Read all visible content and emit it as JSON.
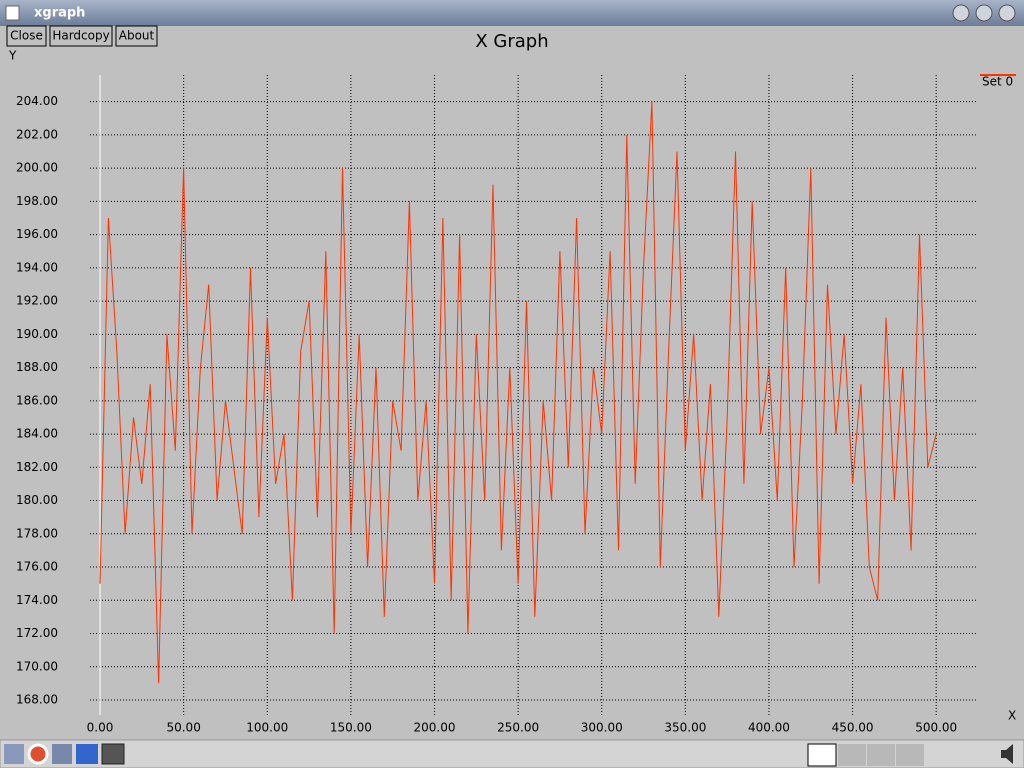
{
  "window": {
    "title": "xgraph"
  },
  "buttons": [
    "Close",
    "Hardcopy",
    "About"
  ],
  "chart_data": {
    "type": "line",
    "title": "X Graph",
    "x_label": "X",
    "y_label": "Y",
    "x": [
      0,
      5,
      10,
      15,
      20,
      25,
      30,
      35,
      40,
      45,
      50,
      55,
      60,
      65,
      70,
      75,
      80,
      85,
      90,
      95,
      100,
      105,
      110,
      115,
      120,
      125,
      130,
      135,
      140,
      145,
      150,
      155,
      160,
      165,
      170,
      175,
      180,
      185,
      190,
      195,
      200,
      205,
      210,
      215,
      220,
      225,
      230,
      235,
      240,
      245,
      250,
      255,
      260,
      265,
      270,
      275,
      280,
      285,
      290,
      295,
      300,
      305,
      310,
      315,
      320,
      325,
      330,
      335,
      340,
      345,
      350,
      355,
      360,
      365,
      370,
      375,
      380,
      385,
      390,
      395,
      400,
      405,
      410,
      415,
      420,
      425,
      430,
      435,
      440,
      445,
      450,
      455,
      460,
      465,
      470,
      475,
      480,
      485,
      490,
      495,
      500
    ],
    "series": [
      {
        "name": "Set 0",
        "color": "#ff3300",
        "values": [
          175,
          197,
          189,
          178,
          185,
          181,
          187,
          169,
          190,
          183,
          200,
          178,
          188,
          193,
          180,
          186,
          182,
          178,
          194,
          179,
          191,
          181,
          184,
          174,
          189,
          192,
          179,
          195,
          172,
          200,
          178,
          190,
          176,
          188,
          173,
          186,
          183,
          198,
          180,
          186,
          175,
          197,
          174,
          196,
          172,
          190,
          180,
          199,
          177,
          188,
          175,
          192,
          173,
          186,
          180,
          195,
          182,
          197,
          178,
          188,
          184,
          195,
          177,
          202,
          181,
          194,
          204,
          176,
          189,
          201,
          183,
          190,
          180,
          187,
          173,
          185,
          201,
          181,
          198,
          184,
          188,
          180,
          194,
          176,
          186,
          200,
          175,
          193,
          184,
          190,
          181,
          187,
          176,
          174,
          191,
          180,
          188,
          177,
          196,
          182,
          184
        ]
      }
    ],
    "xlim": [
      -6,
      525
    ],
    "ylim": [
      167.1,
      205.6
    ],
    "xticks": [
      {
        "value": 0,
        "label": "0.00"
      },
      {
        "value": 50,
        "label": "50.00"
      },
      {
        "value": 100,
        "label": "100.00"
      },
      {
        "value": 150,
        "label": "150.00"
      },
      {
        "value": 200,
        "label": "200.00"
      },
      {
        "value": 250,
        "label": "250.00"
      },
      {
        "value": 300,
        "label": "300.00"
      },
      {
        "value": 350,
        "label": "350.00"
      },
      {
        "value": 400,
        "label": "400.00"
      },
      {
        "value": 450,
        "label": "450.00"
      },
      {
        "value": 500,
        "label": "500.00"
      }
    ],
    "yticks": [
      {
        "value": 168,
        "label": "168.00"
      },
      {
        "value": 170,
        "label": "170.00"
      },
      {
        "value": 172,
        "label": "172.00"
      },
      {
        "value": 174,
        "label": "174.00"
      },
      {
        "value": 176,
        "label": "176.00"
      },
      {
        "value": 178,
        "label": "178.00"
      },
      {
        "value": 180,
        "label": "180.00"
      },
      {
        "value": 182,
        "label": "182.00"
      },
      {
        "value": 184,
        "label": "184.00"
      },
      {
        "value": 186,
        "label": "186.00"
      },
      {
        "value": 188,
        "label": "188.00"
      },
      {
        "value": 190,
        "label": "190.00"
      },
      {
        "value": 192,
        "label": "192.00"
      },
      {
        "value": 194,
        "label": "194.00"
      },
      {
        "value": 196,
        "label": "196.00"
      },
      {
        "value": 198,
        "label": "198.00"
      },
      {
        "value": 200,
        "label": "200.00"
      },
      {
        "value": 202,
        "label": "202.00"
      },
      {
        "value": 204,
        "label": "204.00"
      }
    ],
    "grid": true,
    "legend": "top-right"
  }
}
